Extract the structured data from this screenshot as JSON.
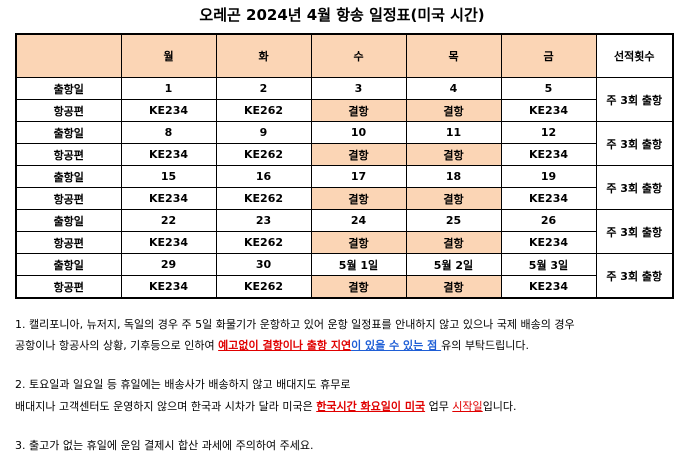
{
  "title": "오레곤 2024년 4월 항송 일정표(미국 시간)",
  "header": {
    "blank": "",
    "days": [
      "월",
      "화",
      "수",
      "목",
      "금"
    ],
    "count_label": "선적횟수"
  },
  "weeks": [
    {
      "ship_label": "출항일",
      "flight_label": "항공편",
      "dates": [
        "1",
        "2",
        "3",
        "4",
        "5"
      ],
      "flights": [
        "KE234",
        "KE262",
        "결항",
        "결항",
        "KE234"
      ],
      "count": "주 3회 출항"
    },
    {
      "ship_label": "출항일",
      "flight_label": "항공편",
      "dates": [
        "8",
        "9",
        "10",
        "11",
        "12"
      ],
      "flights": [
        "KE234",
        "KE262",
        "결항",
        "결항",
        "KE234"
      ],
      "count": "주 3회 출항"
    },
    {
      "ship_label": "출항일",
      "flight_label": "항공편",
      "dates": [
        "15",
        "16",
        "17",
        "18",
        "19"
      ],
      "flights": [
        "KE234",
        "KE262",
        "결항",
        "결항",
        "KE234"
      ],
      "count": "주 3회 출항"
    },
    {
      "ship_label": "출항일",
      "flight_label": "항공편",
      "dates": [
        "22",
        "23",
        "24",
        "25",
        "26"
      ],
      "flights": [
        "KE234",
        "KE262",
        "결항",
        "결항",
        "KE234"
      ],
      "count": "주 3회 출항"
    },
    {
      "ship_label": "출항일",
      "flight_label": "항공편",
      "dates": [
        "29",
        "30",
        "5월 1일",
        "5월 2일",
        "5월 3일"
      ],
      "flights": [
        "KE234",
        "KE262",
        "결항",
        "결항",
        "KE234"
      ],
      "count": "주 3회 출항"
    }
  ],
  "colors": {
    "cancel_bg": "#fbd5b5",
    "header_bg": "#fbd5b5",
    "highlight_red": "#e00000",
    "highlight_blue": "#1f5fd6"
  },
  "notes": {
    "n1_line1": "1. 캘리포니아, 뉴저지, 독일의 경우 주 5일 화물기가 운항하고 있어 운항 일정표를 안내하지 않고 있으나 국제 배송의 경우",
    "n1_line2_a": "공항이나 항공사의 상황, 기후등으로 인하여 ",
    "n1_line2_red": "예고없이 결항이나 출항 지연",
    "n1_line2_blue": "이 있을 수 있는 점 ",
    "n1_line2_b": "유의 부탁드립니다.",
    "n2_line1": "2. 토요일과 일요일 등 휴일에는 배송사가 배송하지 않고 배대지도 휴무로",
    "n2_line2_a": "배대지나 고객센터도 운영하지 않으며 한국과 시차가 달라 미국은 ",
    "n2_line2_red": "한국시간 화요일이 미국",
    "n2_line2_b": " 업무 ",
    "n2_line2_red2": "시작일",
    "n2_line2_c": "입니다.",
    "n3": "3. 출고가 없는 휴일에 운임 결제시 합산 과세에 주의하여 주세요."
  }
}
